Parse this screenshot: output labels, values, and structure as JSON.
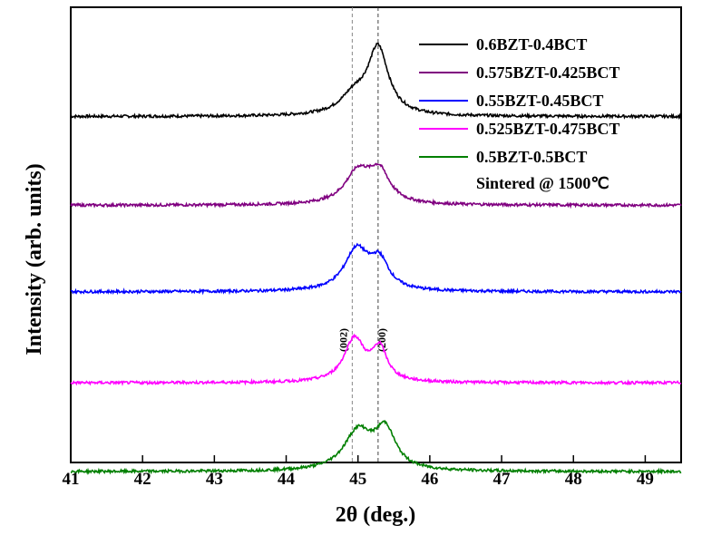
{
  "chart_data": {
    "type": "line",
    "xlabel": "2θ (deg.)",
    "ylabel": "Intensity (arb. units)",
    "xlim": [
      41,
      49.5
    ],
    "x_ticks": [
      "41",
      "42",
      "43",
      "44",
      "45",
      "46",
      "47",
      "48",
      "49"
    ],
    "y_ticks_shown": false,
    "grid": false,
    "legend_position": "top-right",
    "note": "Sintered @ 1500℃",
    "reference_lines": [
      {
        "x": 44.92,
        "label": "(002)",
        "color": "#888888"
      },
      {
        "x": 45.28,
        "label": "(200)",
        "color": "#444444"
      }
    ],
    "series": [
      {
        "name": "0.6BZT-0.4BCT",
        "color": "#000000",
        "baseline": 0.76,
        "peaks": [
          {
            "x": 45.28,
            "height": 0.145,
            "width": 0.22
          },
          {
            "x": 44.95,
            "height": 0.04,
            "width": 0.3
          }
        ]
      },
      {
        "name": "0.575BZT-0.425BCT",
        "color": "#800080",
        "baseline": 0.565,
        "peaks": [
          {
            "x": 45.0,
            "height": 0.07,
            "width": 0.28
          },
          {
            "x": 45.3,
            "height": 0.065,
            "width": 0.22
          }
        ]
      },
      {
        "name": "0.55BZT-0.45BCT",
        "color": "#0000ff",
        "baseline": 0.375,
        "peaks": [
          {
            "x": 44.98,
            "height": 0.09,
            "width": 0.26
          },
          {
            "x": 45.3,
            "height": 0.06,
            "width": 0.2
          }
        ]
      },
      {
        "name": "0.525BZT-0.475BCT",
        "color": "#ff00ff",
        "baseline": 0.175,
        "peaks": [
          {
            "x": 44.95,
            "height": 0.095,
            "width": 0.22
          },
          {
            "x": 45.3,
            "height": 0.07,
            "width": 0.16
          }
        ]
      },
      {
        "name": "0.5BZT-0.5BCT",
        "color": "#007f00",
        "baseline": -0.02,
        "peaks": [
          {
            "x": 45.0,
            "height": 0.085,
            "width": 0.3
          },
          {
            "x": 45.38,
            "height": 0.085,
            "width": 0.22
          }
        ]
      }
    ]
  }
}
